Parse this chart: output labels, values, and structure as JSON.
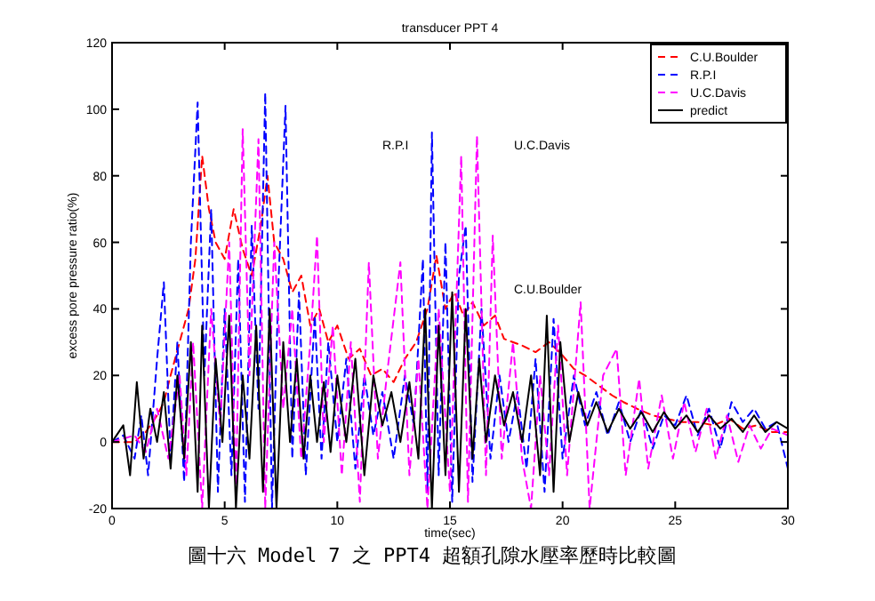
{
  "chart_data": {
    "type": "line",
    "title": "transducer PPT 4",
    "xlabel": "time(sec)",
    "ylabel": "excess pore pressure ratio(%)",
    "xlim": [
      0,
      30
    ],
    "ylim": [
      -20,
      120
    ],
    "xticks": [
      0,
      5,
      10,
      15,
      20,
      25,
      30
    ],
    "yticks": [
      -20,
      0,
      20,
      40,
      60,
      80,
      100,
      120
    ],
    "grid": false,
    "legend": "top right",
    "annotations": [
      "R.P.I",
      "U.C.Davis",
      "C.U.Boulder",
      "圖十六  Model 7 之 PPT4 超額孔隙水壓率歷時比較圖"
    ],
    "series": [
      {
        "name": "C.U.Boulder",
        "color": "#ff0000",
        "line_style": "dashed",
        "x": [
          0,
          1,
          1.5,
          2,
          2.3,
          2.6,
          3,
          3.4,
          3.7,
          4,
          4.3,
          4.6,
          5,
          5.4,
          5.8,
          6.2,
          6.6,
          6.9,
          7.2,
          7.6,
          8,
          8.4,
          8.8,
          9.2,
          9.6,
          10,
          10.5,
          11,
          11.5,
          12,
          12.5,
          13,
          13.5,
          14,
          14.4,
          14.8,
          15.2,
          15.6,
          16,
          16.5,
          17,
          17.4,
          18.2,
          18.8,
          19.4,
          20,
          20.5,
          21,
          21.6,
          22.2,
          22.7,
          23.3,
          24,
          24.6,
          25.3,
          26,
          26.7,
          27.4,
          28,
          28.6,
          29.3,
          30
        ],
        "values": [
          0,
          0,
          3,
          8,
          12,
          20,
          30,
          40,
          55,
          86,
          70,
          60,
          55,
          70,
          58,
          50,
          65,
          80,
          60,
          55,
          45,
          50,
          35,
          40,
          30,
          35,
          25,
          28,
          20,
          22,
          18,
          25,
          30,
          40,
          56,
          40,
          45,
          38,
          42,
          35,
          38,
          31,
          29,
          27,
          30,
          26,
          22,
          20,
          17,
          14,
          12,
          10,
          8,
          7,
          6,
          6,
          5,
          7,
          4,
          5,
          3,
          3
        ]
      },
      {
        "name": "R.P.I",
        "color": "#0000ff",
        "line_style": "dashed",
        "x": [
          0,
          0.5,
          1,
          1.3,
          1.6,
          2,
          2.3,
          2.6,
          2.9,
          3.2,
          3.5,
          3.8,
          4.1,
          4.4,
          4.7,
          5,
          5.3,
          5.6,
          5.9,
          6.2,
          6.5,
          6.8,
          7.1,
          7.4,
          7.7,
          8,
          8.3,
          8.6,
          9,
          9.3,
          9.6,
          10,
          10.4,
          10.8,
          11.2,
          11.6,
          12,
          12.5,
          13,
          13.4,
          13.8,
          14,
          14.2,
          14.5,
          14.8,
          15.1,
          15.4,
          15.7,
          16,
          16.4,
          16.8,
          17.2,
          17.6,
          18,
          18.4,
          18.8,
          19.2,
          19.6,
          20,
          20.5,
          21,
          21.5,
          22,
          22.5,
          23,
          23.5,
          24,
          24.5,
          25,
          25.5,
          26,
          26.5,
          27,
          27.5,
          28,
          28.5,
          29,
          29.5,
          30
        ],
        "values": [
          0,
          2,
          -5,
          8,
          -10,
          25,
          48,
          -5,
          30,
          -12,
          60,
          102,
          20,
          70,
          -15,
          40,
          -10,
          55,
          -18,
          65,
          10,
          105,
          -20,
          50,
          101,
          -5,
          45,
          -10,
          38,
          -5,
          30,
          0,
          25,
          -8,
          20,
          2,
          15,
          -5,
          20,
          5,
          55,
          -15,
          93,
          -10,
          60,
          -18,
          50,
          65,
          -12,
          40,
          -5,
          20,
          0,
          15,
          -8,
          25,
          -15,
          37,
          -5,
          20,
          5,
          15,
          2,
          12,
          0,
          10,
          -2,
          8,
          5,
          14,
          2,
          10,
          -2,
          12,
          6,
          10,
          4,
          6,
          -8
        ]
      },
      {
        "name": "U.C.Davis",
        "color": "#ff00ff",
        "line_style": "dashed",
        "x": [
          0,
          1,
          1.5,
          2,
          2.5,
          3,
          3.3,
          3.6,
          4,
          4.4,
          4.8,
          5.2,
          5.5,
          5.8,
          6.1,
          6.5,
          6.8,
          7.2,
          7.6,
          8,
          8.4,
          8.8,
          9.1,
          9.4,
          9.8,
          10.2,
          10.6,
          11,
          11.4,
          11.8,
          12.2,
          12.8,
          13.2,
          13.6,
          14,
          14.5,
          15,
          15.5,
          15.8,
          16.2,
          16.6,
          16.9,
          17.3,
          17.8,
          18.2,
          18.6,
          19,
          19.4,
          19.8,
          20.2,
          20.8,
          21.2,
          21.8,
          22.4,
          22.8,
          23.4,
          23.8,
          24.4,
          24.9,
          25.4,
          25.9,
          26.4,
          26.8,
          27.3,
          27.8,
          28.3,
          28.8,
          29.3,
          30
        ],
        "values": [
          0,
          2,
          -3,
          10,
          -5,
          20,
          -10,
          30,
          -20,
          40,
          5,
          60,
          -15,
          94,
          20,
          91,
          -20,
          60,
          10,
          40,
          -5,
          30,
          62,
          0,
          35,
          -10,
          30,
          -18,
          54,
          -5,
          20,
          54,
          -10,
          25,
          -20,
          40,
          -15,
          86,
          -18,
          92,
          -10,
          62,
          -5,
          30,
          -5,
          -20,
          20,
          -10,
          35,
          -10,
          42,
          -20,
          20,
          28,
          -10,
          19,
          -8,
          14,
          -5,
          12,
          -3,
          10,
          -5,
          8,
          -6,
          5,
          -2,
          4,
          2
        ]
      },
      {
        "name": "predict",
        "color": "#000000",
        "line_style": "solid",
        "x": [
          0,
          0.5,
          0.8,
          1.1,
          1.4,
          1.7,
          2,
          2.3,
          2.6,
          2.9,
          3.2,
          3.5,
          3.8,
          4,
          4.3,
          4.6,
          4.9,
          5.2,
          5.5,
          5.8,
          6.1,
          6.4,
          6.7,
          7,
          7.3,
          7.6,
          7.9,
          8.2,
          8.5,
          8.8,
          9.1,
          9.4,
          9.7,
          10,
          10.4,
          10.8,
          11.2,
          11.6,
          12,
          12.4,
          12.8,
          13.2,
          13.6,
          13.9,
          14.2,
          14.5,
          14.8,
          15.1,
          15.4,
          15.7,
          16,
          16.3,
          16.6,
          17,
          17.4,
          17.8,
          18.2,
          18.6,
          19,
          19.3,
          19.6,
          19.9,
          20.3,
          20.7,
          21.1,
          21.5,
          22,
          22.5,
          23,
          23.5,
          24,
          24.5,
          25,
          25.5,
          26,
          26.5,
          27,
          27.5,
          28,
          28.5,
          29,
          29.5,
          30
        ],
        "values": [
          0,
          5,
          -10,
          18,
          -5,
          10,
          0,
          15,
          -8,
          20,
          -5,
          30,
          -15,
          35,
          -20,
          25,
          0,
          38,
          -20,
          20,
          -5,
          35,
          -15,
          40,
          -20,
          30,
          0,
          25,
          -5,
          20,
          0,
          18,
          -3,
          20,
          0,
          25,
          -10,
          20,
          5,
          15,
          0,
          18,
          -5,
          40,
          -20,
          35,
          -10,
          45,
          -15,
          40,
          -5,
          25,
          0,
          20,
          5,
          15,
          0,
          20,
          -10,
          38,
          -15,
          30,
          0,
          15,
          5,
          12,
          3,
          10,
          4,
          9,
          3,
          9,
          4,
          8,
          3,
          8,
          4,
          7,
          3,
          8,
          3,
          6,
          4
        ]
      }
    ]
  }
}
